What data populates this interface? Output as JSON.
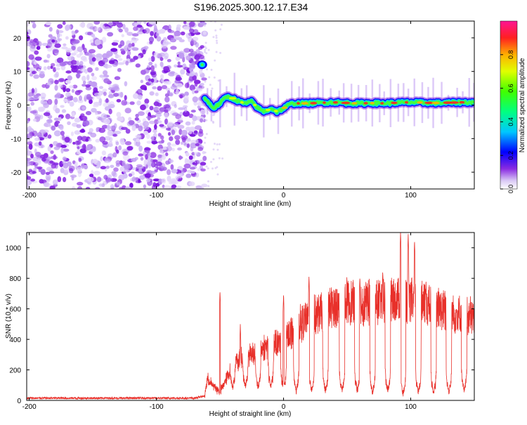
{
  "title": "S196.2025.300.12.17.E34",
  "colors": {
    "snr_line": "#e8302a",
    "spec_purple": "#8a2be2",
    "axis": "#000000"
  },
  "chart_data": [
    {
      "type": "heatmap",
      "title": "S196.2025.300.12.17.E34",
      "xlabel": "Height of straight line (km)",
      "ylabel": "Frequency (Hz)",
      "xlim": [
        -202,
        150
      ],
      "ylim": [
        -25,
        25
      ],
      "x_ticks": [
        -200,
        -100,
        0,
        100
      ],
      "x_tick_labels": [
        "-200",
        "-100",
        "0",
        "100"
      ],
      "y_ticks": [
        -20,
        -10,
        0,
        10,
        20
      ],
      "y_tick_labels": [
        "-20",
        "-10",
        "0",
        "10",
        "20"
      ],
      "colorbar": {
        "label": "Normalized spectral amplitude",
        "range": [
          0,
          1
        ],
        "ticks": [
          0.0,
          0.2,
          0.4,
          0.6,
          0.8
        ],
        "tick_labels": [
          "0.0",
          "0.2",
          "0.4",
          "0.6",
          "0.8"
        ],
        "colormap": "rainbow (purple to magenta)"
      },
      "noise_region_km": [
        -202,
        -62
      ],
      "blob": {
        "x": -64,
        "y": 12,
        "value": 0.4
      },
      "ridge": {
        "description": "Dominant spectral line near 0 Hz after about -60 km",
        "points": [
          {
            "x": -62,
            "y": 2
          },
          {
            "x": -55,
            "y": -1
          },
          {
            "x": -50,
            "y": 0.5
          },
          {
            "x": -45,
            "y": 2.5
          },
          {
            "x": -40,
            "y": 2
          },
          {
            "x": -35,
            "y": 1
          },
          {
            "x": -30,
            "y": 0.5
          },
          {
            "x": -25,
            "y": 1
          },
          {
            "x": -20,
            "y": -1
          },
          {
            "x": -15,
            "y": -2
          },
          {
            "x": -10,
            "y": -1
          },
          {
            "x": -5,
            "y": -2
          },
          {
            "x": 0,
            "y": -1
          },
          {
            "x": 5,
            "y": 0.3
          },
          {
            "x": 10,
            "y": 0.5
          },
          {
            "x": 20,
            "y": 0.5
          },
          {
            "x": 30,
            "y": 0.7
          },
          {
            "x": 40,
            "y": 0.8
          },
          {
            "x": 50,
            "y": 0.6
          },
          {
            "x": 60,
            "y": 0.5
          },
          {
            "x": 70,
            "y": 0.6
          },
          {
            "x": 80,
            "y": 0.5
          },
          {
            "x": 90,
            "y": 0.7
          },
          {
            "x": 100,
            "y": 0.8
          },
          {
            "x": 110,
            "y": 0.7
          },
          {
            "x": 120,
            "y": 0.6
          },
          {
            "x": 130,
            "y": 0.7
          },
          {
            "x": 140,
            "y": 0.8
          },
          {
            "x": 150,
            "y": 0.8
          }
        ]
      }
    },
    {
      "type": "line",
      "xlabel": "Height of straight line (km)",
      "ylabel": "SNR (10 * v/v)",
      "xlim": [
        -202,
        150
      ],
      "ylim": [
        0,
        1100
      ],
      "x_ticks": [
        -200,
        -100,
        0,
        100
      ],
      "x_tick_labels": [
        "-200",
        "-100",
        "0",
        "100"
      ],
      "y_ticks": [
        0,
        200,
        400,
        600,
        800,
        1000
      ],
      "y_tick_labels": [
        "0",
        "200",
        "400",
        "600",
        "800",
        "1000"
      ],
      "series": [
        {
          "name": "SNR",
          "envelope": [
            {
              "x": -202,
              "y": 15
            },
            {
              "x": -70,
              "y": 15
            },
            {
              "x": -62,
              "y": 30
            },
            {
              "x": -60,
              "y": 150
            },
            {
              "x": -55,
              "y": 100
            },
            {
              "x": -50,
              "y": 60
            },
            {
              "x": -40,
              "y": 250
            },
            {
              "x": -30,
              "y": 320
            },
            {
              "x": -20,
              "y": 350
            },
            {
              "x": -10,
              "y": 400
            },
            {
              "x": 0,
              "y": 430
            },
            {
              "x": 10,
              "y": 520
            },
            {
              "x": 20,
              "y": 580
            },
            {
              "x": 30,
              "y": 620
            },
            {
              "x": 40,
              "y": 660
            },
            {
              "x": 50,
              "y": 700
            },
            {
              "x": 60,
              "y": 680
            },
            {
              "x": 70,
              "y": 700
            },
            {
              "x": 80,
              "y": 700
            },
            {
              "x": 90,
              "y": 720
            },
            {
              "x": 100,
              "y": 700
            },
            {
              "x": 110,
              "y": 680
            },
            {
              "x": 120,
              "y": 650
            },
            {
              "x": 130,
              "y": 620
            },
            {
              "x": 140,
              "y": 600
            },
            {
              "x": 150,
              "y": 590
            }
          ],
          "spikes": [
            {
              "x": -50,
              "y": 720
            },
            {
              "x": -34,
              "y": 500
            },
            {
              "x": 0,
              "y": 700
            },
            {
              "x": 20,
              "y": 810
            },
            {
              "x": 60,
              "y": 810
            },
            {
              "x": 78,
              "y": 850
            },
            {
              "x": 92,
              "y": 1100
            },
            {
              "x": 98,
              "y": 1090
            },
            {
              "x": 103,
              "y": 1050
            },
            {
              "x": 112,
              "y": 790
            }
          ],
          "dips": [
            {
              "x": -40,
              "y": 60
            },
            {
              "x": -30,
              "y": 70
            },
            {
              "x": -20,
              "y": 60
            },
            {
              "x": -10,
              "y": 70
            },
            {
              "x": 0,
              "y": 50
            },
            {
              "x": 10,
              "y": 40
            },
            {
              "x": 22,
              "y": 40
            },
            {
              "x": 33,
              "y": 40
            },
            {
              "x": 46,
              "y": 40
            },
            {
              "x": 58,
              "y": 40
            },
            {
              "x": 70,
              "y": 30
            },
            {
              "x": 82,
              "y": 40
            },
            {
              "x": 94,
              "y": 20
            },
            {
              "x": 106,
              "y": 30
            },
            {
              "x": 118,
              "y": 30
            },
            {
              "x": 130,
              "y": 30
            },
            {
              "x": 142,
              "y": 40
            }
          ]
        }
      ]
    }
  ]
}
